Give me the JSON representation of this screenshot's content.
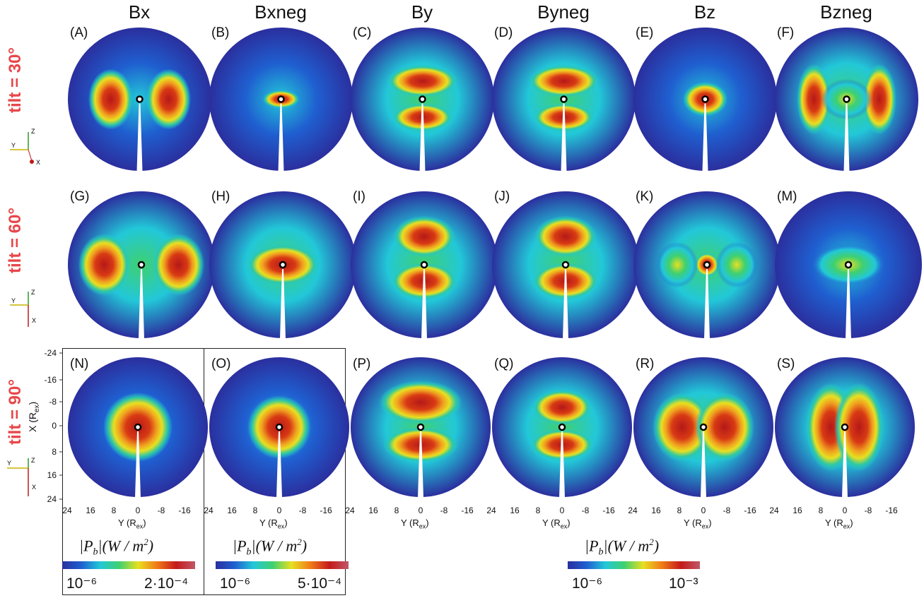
{
  "columns": [
    "Bx",
    "Bxneg",
    "By",
    "Byneg",
    "Bz",
    "Bzneg"
  ],
  "rows": [
    "tilt = 30°",
    "tilt = 60°",
    "tilt = 90°"
  ],
  "panels": [
    [
      "(A)",
      "(B)",
      "(C)",
      "(D)",
      "(E)",
      "(F)"
    ],
    [
      "(G)",
      "(H)",
      "(I)",
      "(J)",
      "(K)",
      "(M)"
    ],
    [
      "(N)",
      "(O)",
      "(P)",
      "(Q)",
      "(R)",
      "(S)"
    ]
  ],
  "x_axis": {
    "label_main": "Y (R",
    "label_sub": "ex",
    "label_end": ")",
    "ticks": [
      "24",
      "16",
      "8",
      "0",
      "-8",
      "-16"
    ]
  },
  "y_axis": {
    "label_main": "X (R",
    "label_sub": "ex",
    "label_end": ")",
    "ticks": [
      "-24",
      "-16",
      "-8",
      "0",
      "8",
      "16",
      "24"
    ]
  },
  "triads": [
    {
      "z": "Z",
      "y": "Y",
      "x": "X"
    },
    {
      "z": "Z",
      "y": "Y",
      "x": "X"
    },
    {
      "z": "Z",
      "y": "Y",
      "x": "X"
    }
  ],
  "colorbars": [
    {
      "title": "|P_b|(W / m^2)",
      "min": "10⁻⁶",
      "max": "2·10⁻⁴"
    },
    {
      "title": "|P_b|(W / m^2)",
      "min": "10⁻⁶",
      "max": "5·10⁻⁴"
    },
    {
      "title": "|P_b|(W / m^2)",
      "min": "10⁻⁶",
      "max": "10⁻³"
    }
  ],
  "colors": {
    "row_title": "#e8474a",
    "colormap": [
      "#2b2f9e",
      "#1f5fd0",
      "#22c8d8",
      "#3fd070",
      "#e8e020",
      "#f07a18",
      "#c41a1a",
      "#c05868"
    ],
    "disk_bg": "#3a3fa6"
  }
}
